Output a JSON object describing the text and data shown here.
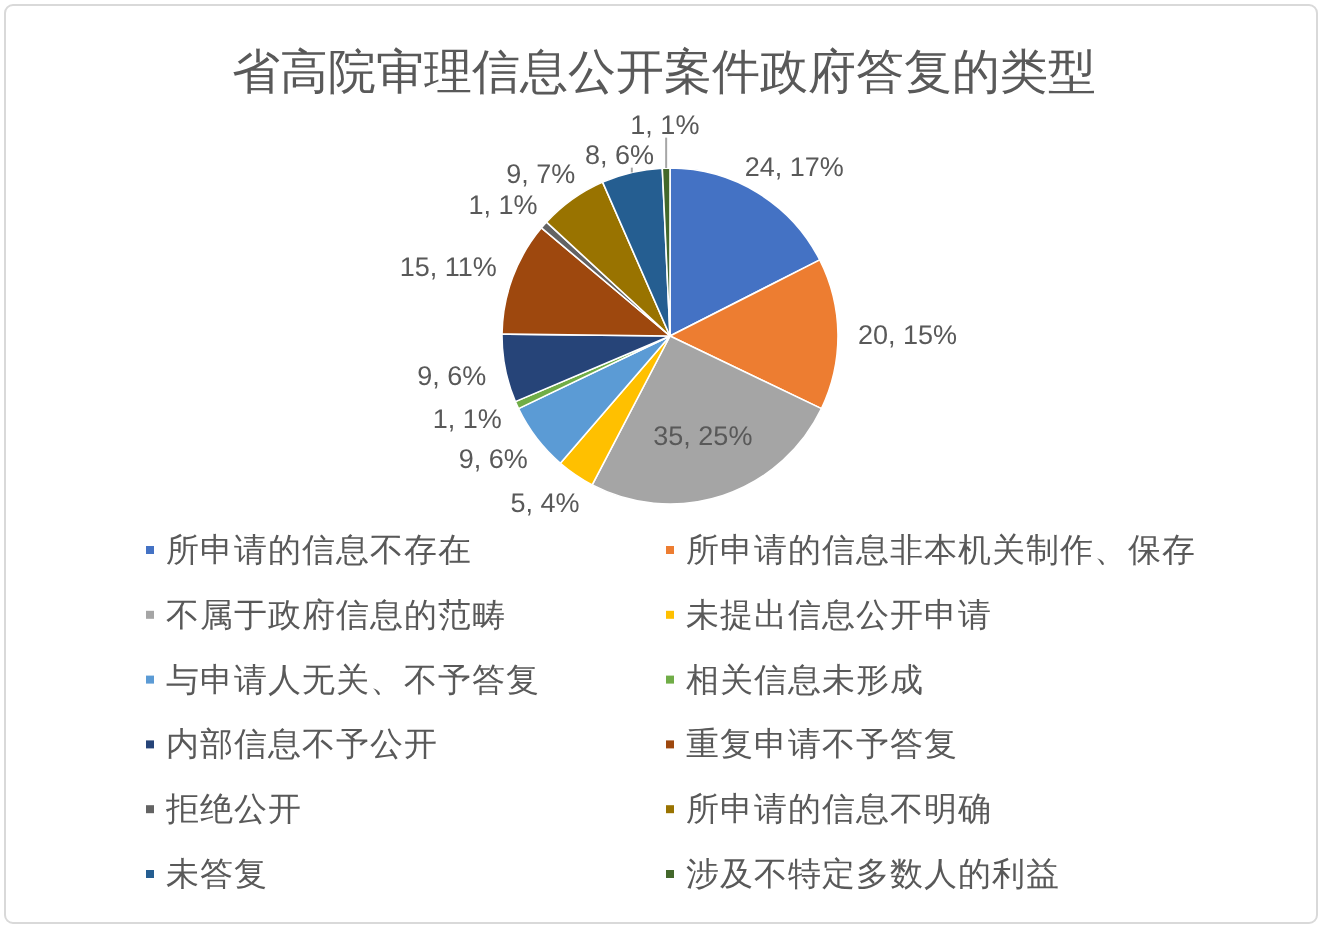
{
  "chart_data": {
    "type": "pie",
    "title": "省高院审理信息公开案件政府答复的类型",
    "categories": [
      "所申请的信息不存在",
      "所申请的信息非本机关制作、保存",
      "不属于政府信息的范畴",
      "未提出信息公开申请",
      "与申请人无关、不予答复",
      "相关信息未形成",
      "内部信息不予公开",
      "重复申请不予答复",
      "拒绝公开",
      "所申请的信息不明确",
      "未答复",
      "涉及不特定多数人的利益"
    ],
    "values": [
      24,
      20,
      35,
      5,
      9,
      1,
      9,
      15,
      1,
      9,
      8,
      1
    ],
    "colors": [
      "#4472c4",
      "#ed7d31",
      "#a5a5a5",
      "#ffc000",
      "#5b9bd5",
      "#70ad47",
      "#264478",
      "#9e480e",
      "#636363",
      "#997300",
      "#255e91",
      "#43682b"
    ],
    "value_labels": [
      "24, 17%",
      "20, 15%",
      "35, 25%",
      "5, 4%",
      "9, 6%",
      "1, 1%",
      "9, 6%",
      "15, 11%",
      "1, 1%",
      "9, 7%",
      "8, 6%",
      "1, 1%"
    ],
    "legend": "bottom"
  }
}
